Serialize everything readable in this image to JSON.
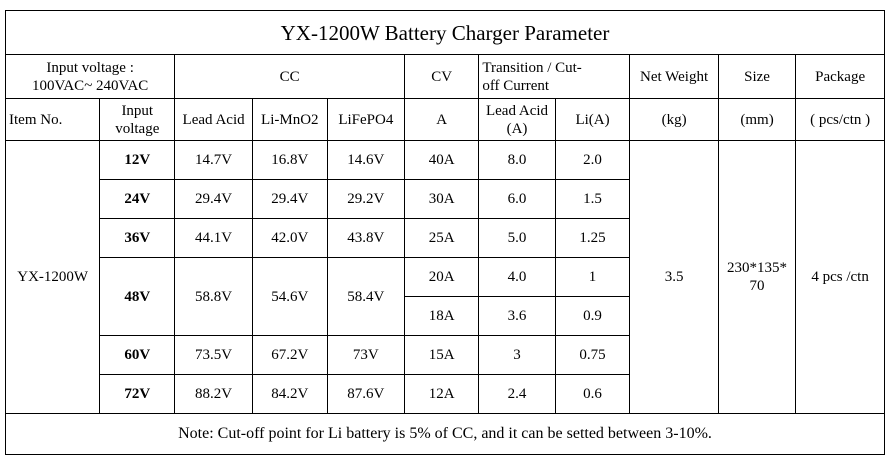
{
  "title": "YX-1200W Battery Charger Parameter",
  "header": {
    "input_voltage_line1": "Input voltage :",
    "input_voltage_line2": "100VAC~ 240VAC",
    "cc": "CC",
    "cv": "CV",
    "transition_line1": "Transition / Cut-",
    "transition_line2": "off Current",
    "net_weight": "Net Weight",
    "size": "Size",
    "package": "Package",
    "item_no": "Item No.",
    "input_voltage_short_line1": "Input",
    "input_voltage_short_line2": "voltage",
    "lead_acid": "Lead Acid",
    "li_mno2": "Li-MnO2",
    "lifepo4": "LiFePO4",
    "cv_unit": "A",
    "trans_lead_acid_line1": "Lead Acid",
    "trans_lead_acid_line2": "(A)",
    "trans_li": "Li(A)",
    "weight_unit": "(kg)",
    "size_unit": "(mm)",
    "package_unit": "( pcs/ctn )"
  },
  "item": {
    "model": "YX-1200W",
    "net_weight": "3.5",
    "size_line1": "230*135*",
    "size_line2": "70",
    "package": "4 pcs /ctn"
  },
  "rows": [
    {
      "voltage": "12V",
      "lead_acid": "14.7V",
      "li_mno2": "16.8V",
      "lifepo4": "14.6V",
      "cv": "40A",
      "trans_lead": "8.0",
      "trans_li": "2.0"
    },
    {
      "voltage": "24V",
      "lead_acid": "29.4V",
      "li_mno2": "29.4V",
      "lifepo4": "29.2V",
      "cv": "30A",
      "trans_lead": "6.0",
      "trans_li": "1.5"
    },
    {
      "voltage": "36V",
      "lead_acid": "44.1V",
      "li_mno2": "42.0V",
      "lifepo4": "43.8V",
      "cv": "25A",
      "trans_lead": "5.0",
      "trans_li": "1.25"
    },
    {
      "voltage": "48V",
      "lead_acid": "58.8V",
      "li_mno2": "54.6V",
      "lifepo4": "58.4V",
      "cv": "20A",
      "trans_lead": "4.0",
      "trans_li": "1"
    },
    {
      "cv": "18A",
      "trans_lead": "3.6",
      "trans_li": "0.9"
    },
    {
      "voltage": "60V",
      "lead_acid": "73.5V",
      "li_mno2": "67.2V",
      "lifepo4": "73V",
      "cv": "15A",
      "trans_lead": "3",
      "trans_li": "0.75"
    },
    {
      "voltage": "72V",
      "lead_acid": "88.2V",
      "li_mno2": "84.2V",
      "lifepo4": "87.6V",
      "cv": "12A",
      "trans_lead": "2.4",
      "trans_li": "0.6"
    }
  ],
  "note": "Note: Cut-off point for Li battery is 5% of CC, and it can be setted between 3-10%."
}
